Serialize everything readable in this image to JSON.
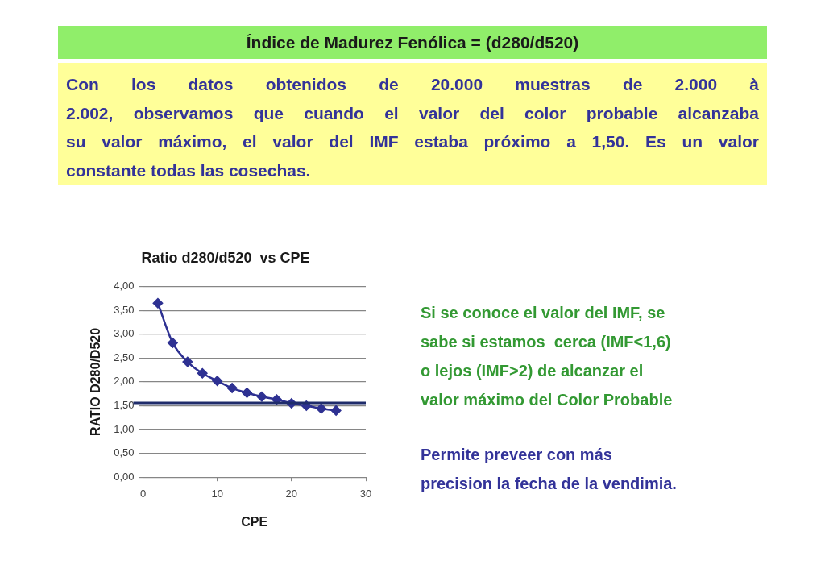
{
  "chart_data": {
    "type": "line",
    "title": "Ratio d280/d520  vs CPE",
    "xlabel": "CPE",
    "ylabel": "RATIO D280/D520",
    "x": [
      2,
      4,
      6,
      8,
      10,
      12,
      14,
      16,
      18,
      20,
      22,
      24,
      26
    ],
    "series": [
      {
        "color": "#2e3192",
        "values": [
          3.65,
          2.82,
          2.42,
          2.18,
          2.02,
          1.87,
          1.77,
          1.69,
          1.63,
          1.55,
          1.5,
          1.44,
          1.4
        ]
      }
    ],
    "xlim": [
      0,
      30
    ],
    "xticks": [
      0,
      10,
      20,
      30
    ],
    "ylim": [
      0,
      4
    ],
    "yticks": [
      {
        "value": 0,
        "label": "0,00"
      },
      {
        "value": 0.5,
        "label": "0,50"
      },
      {
        "value": 1,
        "label": "1,00"
      },
      {
        "value": 1.5,
        "label": "1,50"
      },
      {
        "value": 2,
        "label": "2,00"
      },
      {
        "value": 2.5,
        "label": "2,50"
      },
      {
        "value": 3,
        "label": "3,00"
      },
      {
        "value": 3.5,
        "label": "3,50"
      },
      {
        "value": 4,
        "label": "4,00"
      }
    ],
    "grid": "y",
    "marker": "diamond",
    "line_style": "solid",
    "ref_lines": [
      {
        "axis": "y",
        "value": 1.56,
        "color": "#1f2c6b"
      }
    ],
    "annotations": [
      "Índice de Madurez Fenólica = (d280/d520)",
      "Con los datos obtenidos de 20.000 muestras de 2.000 à\n2.002, observamos que cuando el valor del color probable alcanzaba\nsu valor máximo, el valor del IMF estaba próximo a 1,50. Es un valor\nconstante todas las cosechas.",
      "Si se conoce el valor del IMF, se\nsabe si estamos  cerca (IMF<1,6)\no lejos (IMF>2) de alcanzar el\nvalor máximo del Color Probable",
      "Permite preveer con más\nprecision la fecha de la vendimia."
    ]
  }
}
